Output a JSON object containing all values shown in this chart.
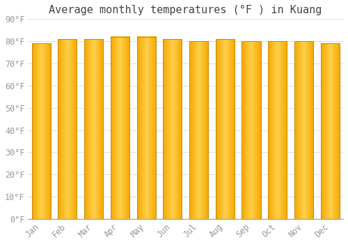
{
  "title": "Average monthly temperatures (°F ) in Kuang",
  "months": [
    "Jan",
    "Feb",
    "Mar",
    "Apr",
    "May",
    "Jun",
    "Jul",
    "Aug",
    "Sep",
    "Oct",
    "Nov",
    "Dec"
  ],
  "values": [
    79,
    81,
    81,
    82,
    82,
    81,
    80,
    81,
    80,
    80,
    80,
    79
  ],
  "ylim": [
    0,
    90
  ],
  "yticks": [
    0,
    10,
    20,
    30,
    40,
    50,
    60,
    70,
    80,
    90
  ],
  "ytick_labels": [
    "0°F",
    "10°F",
    "20°F",
    "30°F",
    "40°F",
    "50°F",
    "60°F",
    "70°F",
    "80°F",
    "90°F"
  ],
  "bar_color_center": "#FFD04A",
  "bar_color_edge": "#F5A800",
  "bar_border_color": "#C8880A",
  "background_color": "#FFFFFF",
  "plot_bg_color": "#FFFFFF",
  "grid_color": "#E0E0E0",
  "tick_color": "#999999",
  "title_color": "#444444",
  "title_fontsize": 11,
  "tick_fontsize": 8.5,
  "font_family": "monospace"
}
